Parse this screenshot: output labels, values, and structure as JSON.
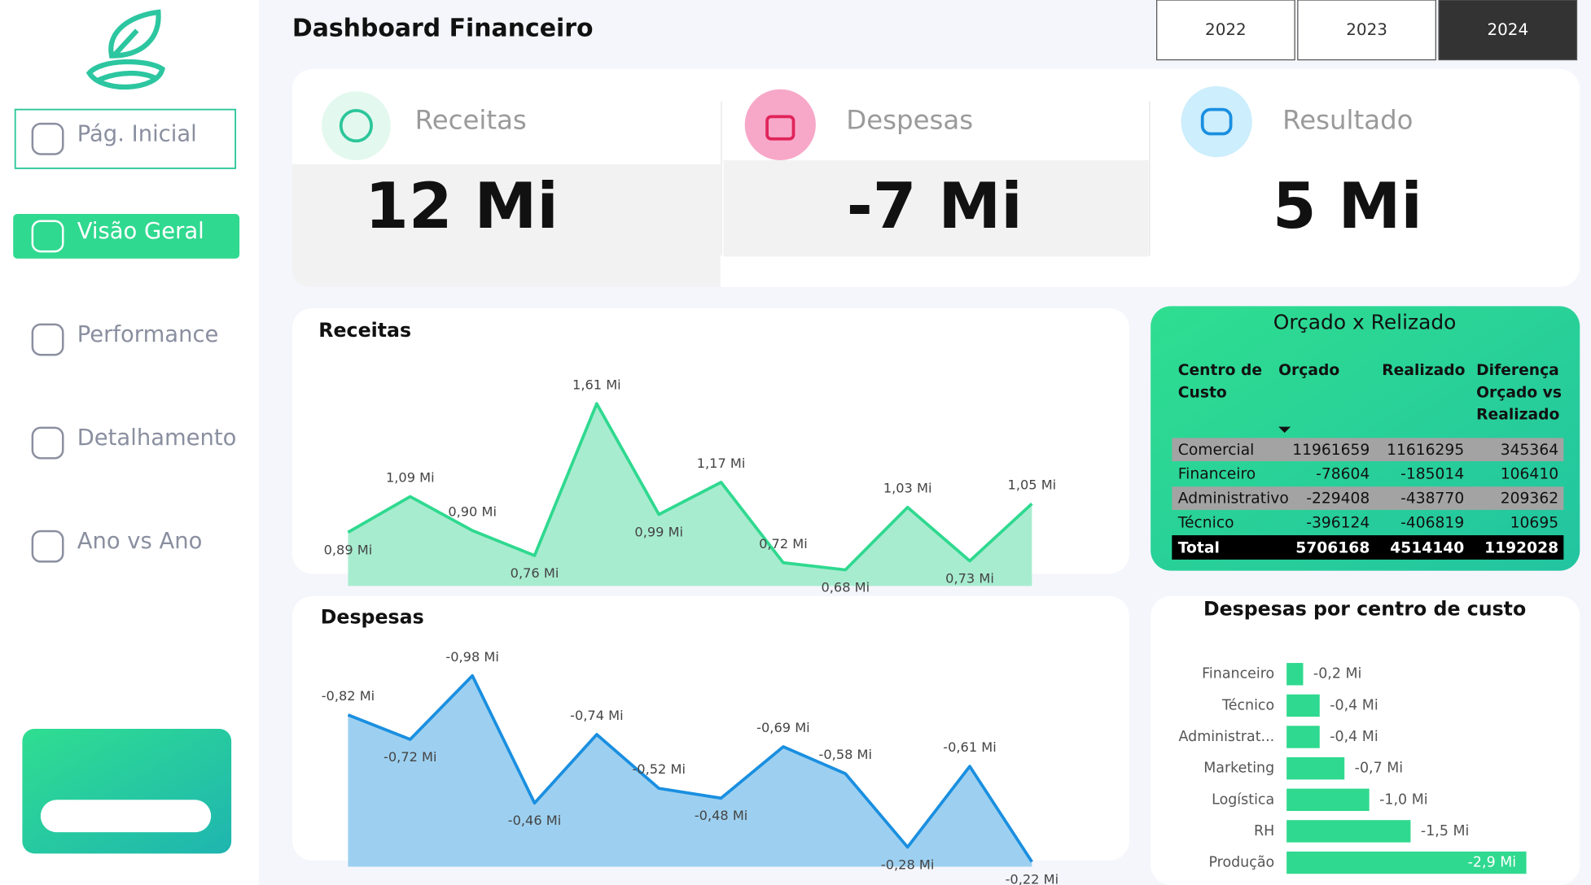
{
  "header": {
    "title": "Dashboard Financeiro",
    "years": [
      "2022",
      "2023",
      "2024"
    ],
    "selected_year": 2
  },
  "nav": {
    "items": [
      "Pág. Inicial",
      "Visão Geral",
      "Performance",
      "Detalhamento",
      "Ano vs Ano"
    ],
    "active": 1
  },
  "kpis": [
    {
      "label": "Receitas",
      "value": "12 Mi"
    },
    {
      "label": "Despesas",
      "value": "-7 Mi"
    },
    {
      "label": "Resultado",
      "value": "5 Mi"
    }
  ],
  "chart_data": [
    {
      "type": "area",
      "title": "Receitas",
      "categories": [
        null,
        null,
        null,
        null,
        null,
        null,
        null,
        null,
        null,
        null,
        null,
        null
      ],
      "values": [
        0.89,
        1.09,
        0.9,
        0.76,
        1.61,
        0.99,
        1.17,
        0.72,
        0.68,
        1.03,
        0.73,
        1.05
      ],
      "value_labels": [
        "0,89 Mi",
        "1,09 Mi",
        "0,90 Mi",
        "0,76 Mi",
        "1,61 Mi",
        "0,99 Mi",
        "1,17 Mi",
        "0,72 Mi",
        "0,68 Mi",
        "1,03 Mi",
        "0,73 Mi",
        "1,05 Mi"
      ],
      "ylim": [
        0.59,
        1.94
      ],
      "color": "#2fd98f",
      "fill": "#a8ecd0"
    },
    {
      "type": "area",
      "title": "Despesas",
      "categories": [
        null,
        null,
        null,
        null,
        null,
        null,
        null,
        null,
        null,
        null,
        null,
        null
      ],
      "values": [
        -0.82,
        -0.72,
        -0.98,
        -0.46,
        -0.74,
        -0.52,
        -0.48,
        -0.69,
        -0.58,
        -0.28,
        -0.61,
        -0.22
      ],
      "value_labels": [
        "-0,82 Mi",
        "-0,72 Mi",
        "-0,98 Mi",
        "-0,46 Mi",
        "-0,74 Mi",
        "-0,52 Mi",
        "-0,48 Mi",
        "-0,69 Mi",
        "-0,58 Mi",
        "-0,28 Mi",
        "-0,61 Mi",
        "-0,22 Mi"
      ],
      "ylim": [
        -0.2,
        -1.09
      ],
      "color": "#1a8fe0",
      "fill": "#9dd0f0"
    },
    {
      "type": "bar",
      "orientation": "horizontal",
      "title": "Despesas por centro de custo",
      "categories": [
        "Financeiro",
        "Técnico",
        "Administrat...",
        "Marketing",
        "Logística",
        "RH",
        "Produção"
      ],
      "values": [
        -0.2,
        -0.4,
        -0.4,
        -0.7,
        -1.0,
        -1.5,
        -2.9
      ],
      "value_labels": [
        "-0,2 Mi",
        "-0,4 Mi",
        "-0,4 Mi",
        "-0,7 Mi",
        "-1,0 Mi",
        "-1,5 Mi",
        "-2,9 Mi"
      ],
      "xlim": [
        0,
        -3.4
      ],
      "color": "#2fd98f"
    }
  ],
  "table": {
    "title": "Orçado x Relizado",
    "columns": [
      "Centro de Custo",
      "Orçado",
      "Realizado",
      "Diferença Orçado vs Realizado"
    ],
    "rows": [
      [
        "Comercial",
        11961659,
        11616295,
        345364
      ],
      [
        "Financeiro",
        -78604,
        -185014,
        106410
      ],
      [
        "Administrativo",
        -229408,
        -438770,
        209362
      ],
      [
        "Técnico",
        -396124,
        -406819,
        10695
      ]
    ],
    "total": [
      "Total",
      5706168,
      4514140,
      1192028
    ]
  }
}
